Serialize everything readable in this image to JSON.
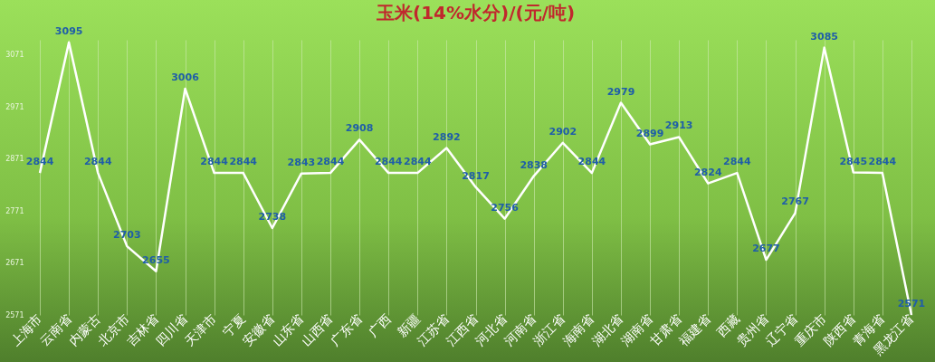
{
  "chart_data": {
    "type": "line",
    "title": "玉米(14%水分)/(元/吨)",
    "categories": [
      "上海市",
      "云南省",
      "内蒙古",
      "北京市",
      "吉林省",
      "四川省",
      "天津市",
      "宁夏",
      "安徽省",
      "山东省",
      "山西省",
      "广东省",
      "广西",
      "新疆",
      "江苏省",
      "江西省",
      "河北省",
      "河南省",
      "浙江省",
      "海南省",
      "湖北省",
      "湖南省",
      "甘肃省",
      "福建省",
      "西藏",
      "贵州省",
      "辽宁省",
      "重庆市",
      "陕西省",
      "青海省",
      "黑龙江省"
    ],
    "series": [
      {
        "color": "#ffffff",
        "values": [
          2844,
          3095,
          2844,
          2703,
          2655,
          3006,
          2844,
          2844,
          2738,
          2843,
          2844,
          2908,
          2844,
          2844,
          2892,
          2817,
          2756,
          2838,
          2902,
          2844,
          2979,
          2899,
          2913,
          2824,
          2844,
          2677,
          2767,
          3085,
          2845,
          2844,
          2571
        ]
      }
    ],
    "ylim": [
      2571,
      3100
    ],
    "yticks": [
      2571,
      2671,
      2771,
      2871,
      2971,
      3071
    ],
    "grid": "x",
    "data_labels": true,
    "marker": "none",
    "line_style": "solid",
    "legend": false
  }
}
